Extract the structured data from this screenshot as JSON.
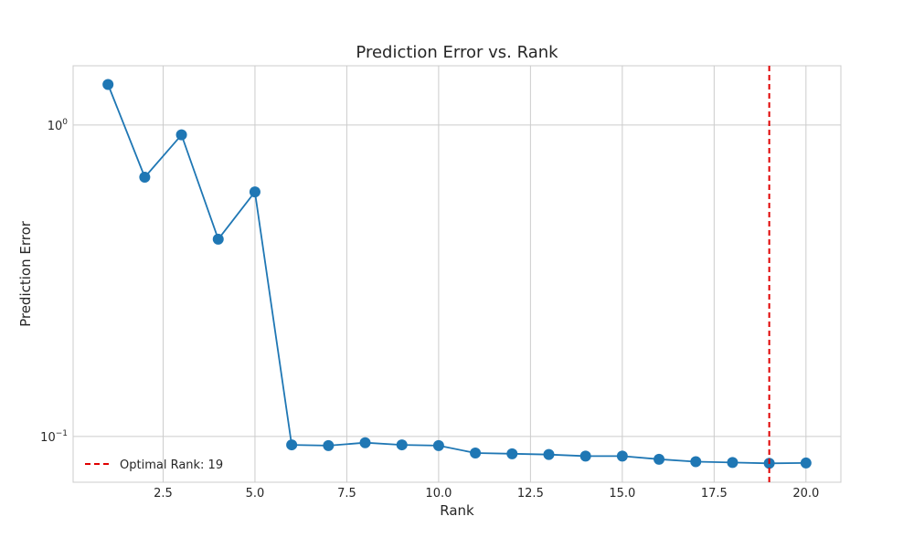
{
  "chart_data": {
    "type": "line",
    "title": "Prediction Error vs. Rank",
    "xlabel": "Rank",
    "ylabel": "Prediction Error",
    "x_scale": "linear",
    "y_scale": "log",
    "xlim": [
      0.05,
      20.95
    ],
    "ylim": [
      0.0713,
      1.55
    ],
    "x_ticks": [
      2.5,
      5.0,
      7.5,
      10.0,
      12.5,
      15.0,
      17.5,
      20.0
    ],
    "x_tick_labels": [
      "2.5",
      "5.0",
      "7.5",
      "10.0",
      "12.5",
      "15.0",
      "17.5",
      "20.0"
    ],
    "y_ticks": [
      1.0,
      0.1
    ],
    "y_tick_labels": [
      {
        "base": "10",
        "exp": "0"
      },
      {
        "base": "10",
        "exp": "−1"
      }
    ],
    "grid": true,
    "legend_position": "lower-left",
    "series": [
      {
        "color": "#1f77b4",
        "marker": "circle",
        "x": [
          1,
          2,
          3,
          4,
          5,
          6,
          7,
          8,
          9,
          10,
          11,
          12,
          13,
          14,
          15,
          16,
          17,
          18,
          19,
          20
        ],
        "y": [
          1.35,
          0.68,
          0.93,
          0.43,
          0.61,
          0.094,
          0.0935,
          0.0955,
          0.094,
          0.0935,
          0.0885,
          0.088,
          0.0875,
          0.0865,
          0.0865,
          0.0845,
          0.083,
          0.0825,
          0.082,
          0.0822
        ]
      }
    ],
    "reference_line": {
      "orientation": "vertical",
      "x": 19,
      "color": "#e00000",
      "style": "dashed",
      "label": "Optimal Rank: 19"
    }
  }
}
